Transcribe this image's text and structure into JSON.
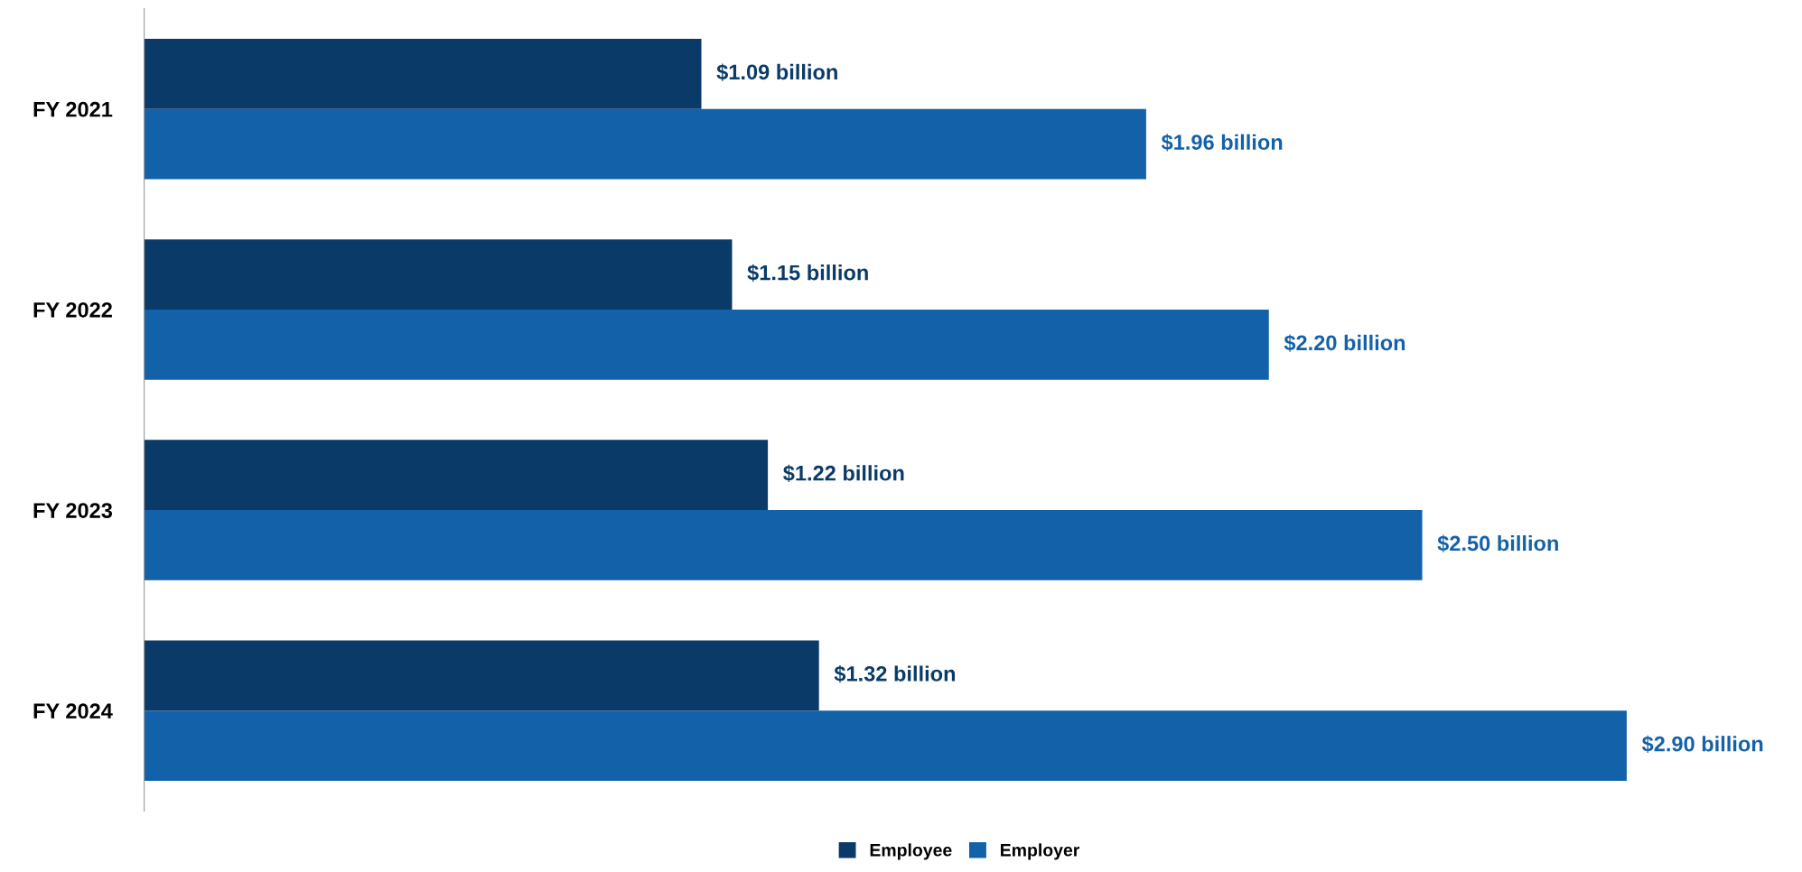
{
  "chart_data": {
    "type": "bar",
    "orientation": "horizontal",
    "categories": [
      "FY 2021",
      "FY 2022",
      "FY 2023",
      "FY 2024"
    ],
    "series": [
      {
        "name": "Employee",
        "color": "#0a3a68",
        "values": [
          1.09,
          1.15,
          1.22,
          1.32
        ],
        "value_labels": [
          "$1.09 billion",
          "$1.15 billion",
          "$1.22 billion",
          "$1.32 billion"
        ]
      },
      {
        "name": "Employer",
        "color": "#1361a9",
        "values": [
          1.96,
          2.2,
          2.5,
          2.9
        ],
        "value_labels": [
          "$1.96 billion",
          "$2.20 billion",
          "$2.50 billion",
          "$2.90 billion"
        ]
      }
    ],
    "tick_labels": "y",
    "grid": false,
    "legend": "bottom"
  }
}
